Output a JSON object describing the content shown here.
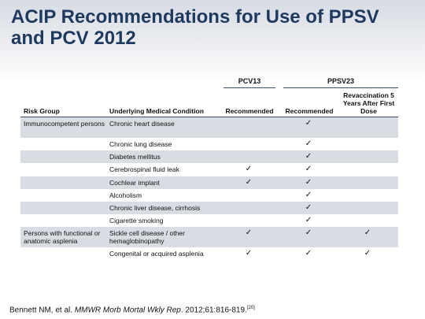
{
  "title": "ACIP Recommendations for Use of PPSV and PCV 2012",
  "groups": {
    "pcv13": "PCV13",
    "ppsv23": "PPSV23"
  },
  "headers": {
    "risk_group": "Risk Group",
    "condition": "Underlying Medical Condition",
    "pcv13_recommended": "Recommended",
    "ppsv23_recommended": "Recommended",
    "revaccination": "Revaccination 5 Years After First Dose"
  },
  "check_symbol": "✓",
  "rows": [
    {
      "risk_group": "Immunocompetent persons",
      "condition": "Chronic heart disease",
      "pcv13": "",
      "ppsv23": "✓",
      "revacc": ""
    },
    {
      "risk_group": "",
      "condition": "Chronic lung disease",
      "pcv13": "",
      "ppsv23": "✓",
      "revacc": ""
    },
    {
      "risk_group": "",
      "condition": "Diabetes mellitus",
      "pcv13": "",
      "ppsv23": "✓",
      "revacc": ""
    },
    {
      "risk_group": "",
      "condition": "Cerebrospinal fluid leak",
      "pcv13": "✓",
      "ppsv23": "✓",
      "revacc": ""
    },
    {
      "risk_group": "",
      "condition": "Cochlear implant",
      "pcv13": "✓",
      "ppsv23": "✓",
      "revacc": ""
    },
    {
      "risk_group": "",
      "condition": "Alcoholism",
      "pcv13": "",
      "ppsv23": "✓",
      "revacc": ""
    },
    {
      "risk_group": "",
      "condition": "Chronic liver disease, cirrhosis",
      "pcv13": "",
      "ppsv23": "✓",
      "revacc": ""
    },
    {
      "risk_group": "",
      "condition": "Cigarette smoking",
      "pcv13": "",
      "ppsv23": "✓",
      "revacc": ""
    },
    {
      "risk_group": "Persons with functional or anatomic asplenia",
      "condition": "Sickle cell disease / other hemaglobinopathy",
      "pcv13": "✓",
      "ppsv23": "✓",
      "revacc": "✓"
    },
    {
      "risk_group": "",
      "condition": "Congenital or acquired asplenia",
      "pcv13": "✓",
      "ppsv23": "✓",
      "revacc": "✓"
    }
  ],
  "citation": {
    "authors": "Bennett NM, et al.",
    "journal": "MMWR Morb Mortal Wkly Rep",
    "details": ". 2012;61:816-819.",
    "ref": "[20]"
  }
}
